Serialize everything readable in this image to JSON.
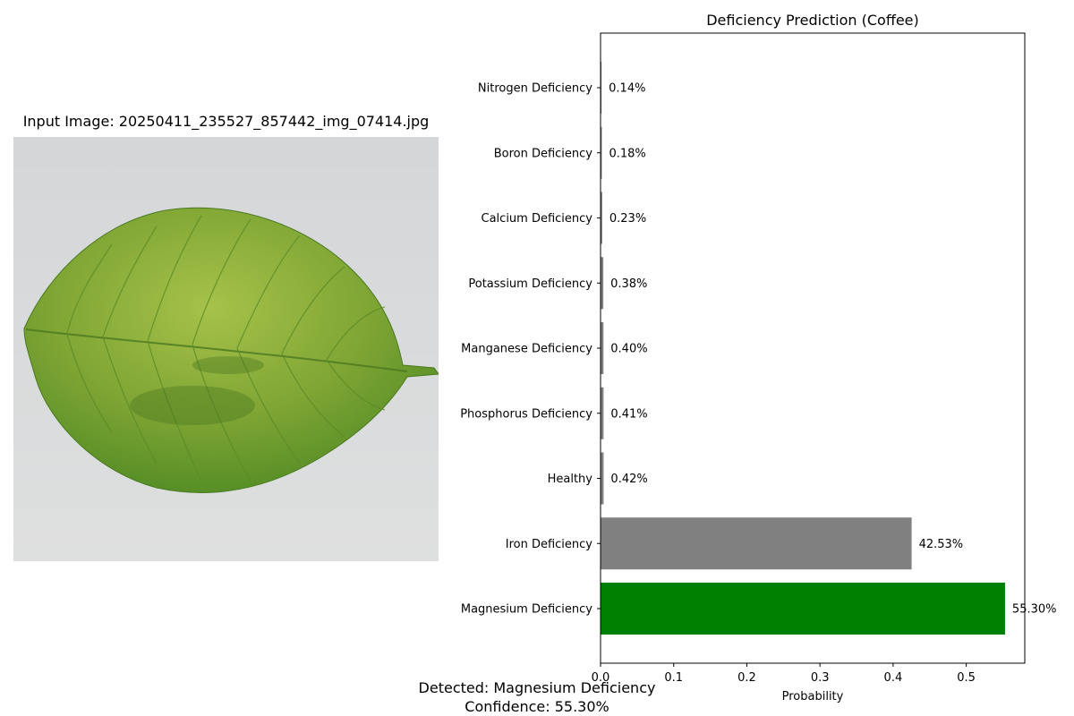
{
  "image_panel": {
    "title": "Input Image: 20250411_235527_857442_img_07414.jpg",
    "leaf_color": "#6f9a2e",
    "vein_color": "#4d7a22",
    "background_color": "#d9dbdc"
  },
  "chart_data": {
    "type": "bar",
    "orientation": "horizontal",
    "title": "Deficiency Prediction (Coffee)",
    "xlabel": "Probability",
    "ylabel": "",
    "xlim": [
      0,
      0.58
    ],
    "xticks": [
      0.0,
      0.1,
      0.2,
      0.3,
      0.4,
      0.5
    ],
    "xtick_labels": [
      "0.0",
      "0.1",
      "0.2",
      "0.3",
      "0.4",
      "0.5"
    ],
    "grid": false,
    "categories": [
      "Nitrogen Deficiency",
      "Boron Deficiency",
      "Calcium Deficiency",
      "Potassium Deficiency",
      "Manganese Deficiency",
      "Phosphorus Deficiency",
      "Healthy",
      "Iron Deficiency",
      "Magnesium Deficiency"
    ],
    "values": [
      0.0014,
      0.0018,
      0.0023,
      0.0038,
      0.004,
      0.0041,
      0.0042,
      0.4253,
      0.553
    ],
    "value_labels": [
      "0.14%",
      "0.18%",
      "0.23%",
      "0.38%",
      "0.40%",
      "0.41%",
      "0.42%",
      "42.53%",
      "55.30%"
    ],
    "colors": [
      "#808080",
      "#808080",
      "#808080",
      "#808080",
      "#808080",
      "#808080",
      "#808080",
      "#808080",
      "#008000"
    ]
  },
  "summary": {
    "detected": "Detected: Magnesium Deficiency",
    "confidence": "Confidence: 55.30%"
  }
}
